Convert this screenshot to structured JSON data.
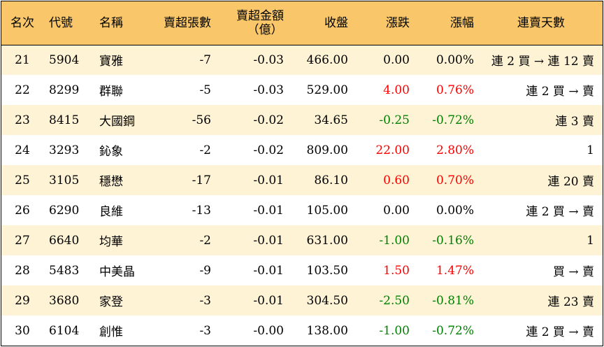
{
  "headers": {
    "rank": "名次",
    "code": "代號",
    "name": "名稱",
    "qty": "賣超張數",
    "amount_line1": "賣超金額",
    "amount_line2": "（億）",
    "close": "收盤",
    "change": "漲跌",
    "pct": "漲幅",
    "days": "連賣天數"
  },
  "colors": {
    "header_bg": "#f9c76a",
    "row_alt_bg": "#fff3d6",
    "up": "#ff0000",
    "down": "#008000"
  },
  "rows": [
    {
      "rank": "21",
      "code": "5904",
      "name": "寶雅",
      "qty": "-7",
      "amount": "-0.03",
      "close": "466.00",
      "change": "0.00",
      "pct": "0.00%",
      "days": "連 2 買 → 連 12 賣",
      "dir": "flat"
    },
    {
      "rank": "22",
      "code": "8299",
      "name": "群聯",
      "qty": "-5",
      "amount": "-0.03",
      "close": "529.00",
      "change": "4.00",
      "pct": "0.76%",
      "days": "連 2 買 → 賣",
      "dir": "up"
    },
    {
      "rank": "23",
      "code": "8415",
      "name": "大國鋼",
      "qty": "-56",
      "amount": "-0.02",
      "close": "34.65",
      "change": "-0.25",
      "pct": "-0.72%",
      "days": "連 3 賣",
      "dir": "down"
    },
    {
      "rank": "24",
      "code": "3293",
      "name": "鈊象",
      "qty": "-2",
      "amount": "-0.02",
      "close": "809.00",
      "change": "22.00",
      "pct": "2.80%",
      "days": "1",
      "dir": "up"
    },
    {
      "rank": "25",
      "code": "3105",
      "name": "穩懋",
      "qty": "-17",
      "amount": "-0.01",
      "close": "86.10",
      "change": "0.60",
      "pct": "0.70%",
      "days": "連 20 賣",
      "dir": "up"
    },
    {
      "rank": "26",
      "code": "6290",
      "name": "良維",
      "qty": "-13",
      "amount": "-0.01",
      "close": "105.00",
      "change": "0.00",
      "pct": "0.00%",
      "days": "連 2 買 → 賣",
      "dir": "flat"
    },
    {
      "rank": "27",
      "code": "6640",
      "name": "均華",
      "qty": "-2",
      "amount": "-0.01",
      "close": "631.00",
      "change": "-1.00",
      "pct": "-0.16%",
      "days": "1",
      "dir": "down"
    },
    {
      "rank": "28",
      "code": "5483",
      "name": "中美晶",
      "qty": "-9",
      "amount": "-0.01",
      "close": "103.50",
      "change": "1.50",
      "pct": "1.47%",
      "days": "買 → 賣",
      "dir": "up"
    },
    {
      "rank": "29",
      "code": "3680",
      "name": "家登",
      "qty": "-3",
      "amount": "-0.01",
      "close": "304.50",
      "change": "-2.50",
      "pct": "-0.81%",
      "days": "連 23 賣",
      "dir": "down"
    },
    {
      "rank": "30",
      "code": "6104",
      "name": "創惟",
      "qty": "-3",
      "amount": "-0.00",
      "close": "138.00",
      "change": "-1.00",
      "pct": "-0.72%",
      "days": "連 2 買 → 賣",
      "dir": "down"
    }
  ]
}
